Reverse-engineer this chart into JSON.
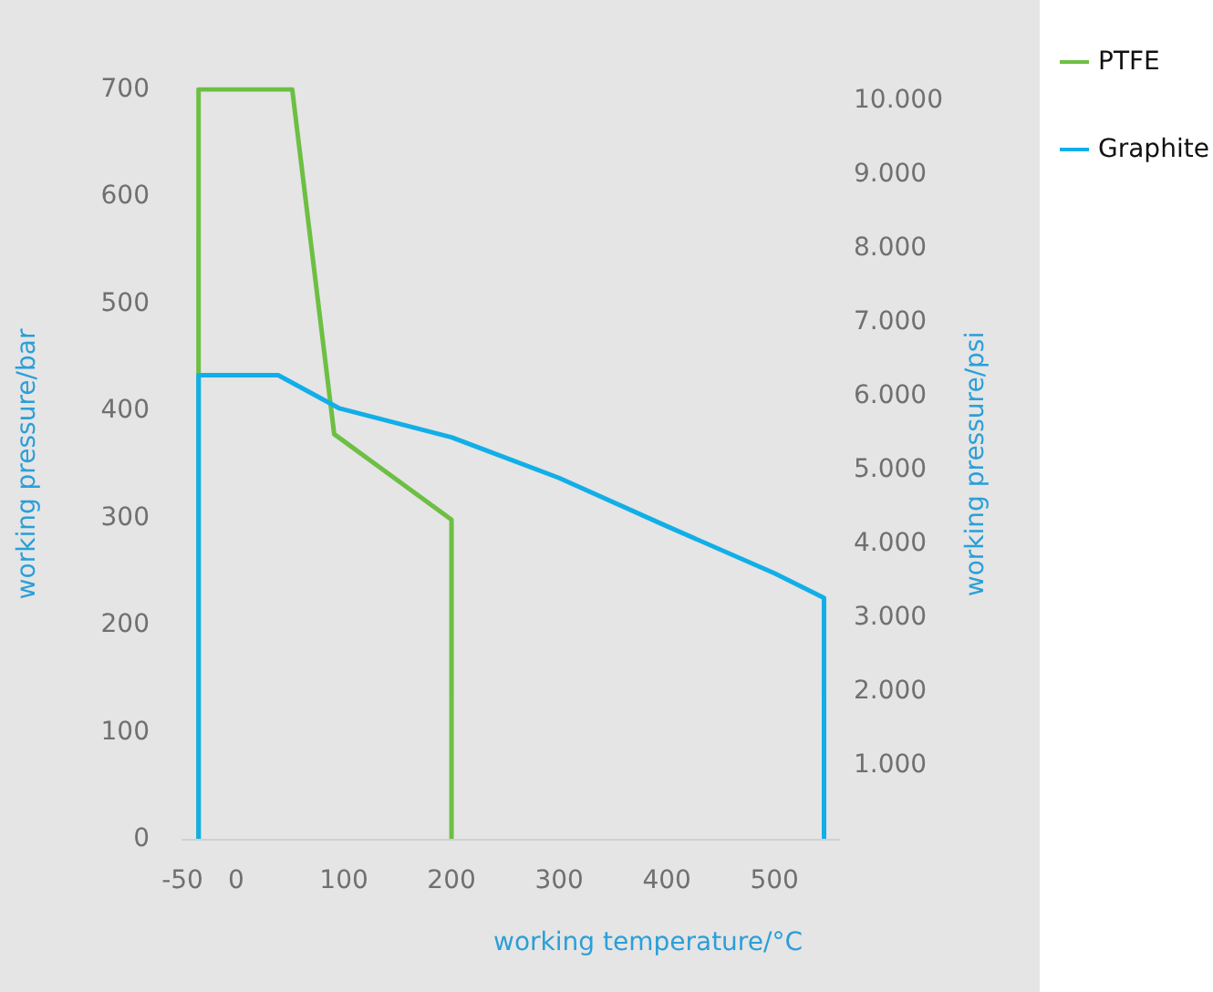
{
  "chart_data": {
    "type": "line",
    "xlabel": "working temperature/°C",
    "ylabel": "working pressure/bar",
    "y2label": "working pressure/psi",
    "xlim": [
      -50,
      560
    ],
    "xticks": [
      -50,
      0,
      100,
      200,
      300,
      400,
      500
    ],
    "ylim": [
      0,
      700
    ],
    "yticks": [
      0,
      100,
      200,
      300,
      400,
      500,
      600,
      700
    ],
    "y2lim": [
      0,
      10153
    ],
    "y2ticks": [
      {
        "value": 1000,
        "label": "1.000"
      },
      {
        "value": 2000,
        "label": "2.000"
      },
      {
        "value": 3000,
        "label": "3.000"
      },
      {
        "value": 4000,
        "label": "4.000"
      },
      {
        "value": 5000,
        "label": "5.000"
      },
      {
        "value": 6000,
        "label": "6.000"
      },
      {
        "value": 7000,
        "label": "7.000"
      },
      {
        "value": 8000,
        "label": "8.000"
      },
      {
        "value": 9000,
        "label": "9.000"
      },
      {
        "value": 10000,
        "label": "10.000"
      }
    ],
    "grid": false,
    "legend": "right",
    "marker": "none",
    "line_style": "solid",
    "series": [
      {
        "name": "PTFE",
        "color": "#6dbf44",
        "x": [
          -35,
          -35,
          52,
          91,
          200,
          200
        ],
        "values": [
          0,
          700,
          700,
          378,
          298,
          0
        ]
      },
      {
        "name": "Graphite",
        "color": "#12aee8",
        "x": [
          -35,
          -35,
          39,
          96,
          200,
          300,
          400,
          500,
          546,
          546
        ],
        "values": [
          0,
          433,
          433,
          402,
          375,
          337,
          292,
          248,
          225,
          0
        ]
      }
    ]
  }
}
